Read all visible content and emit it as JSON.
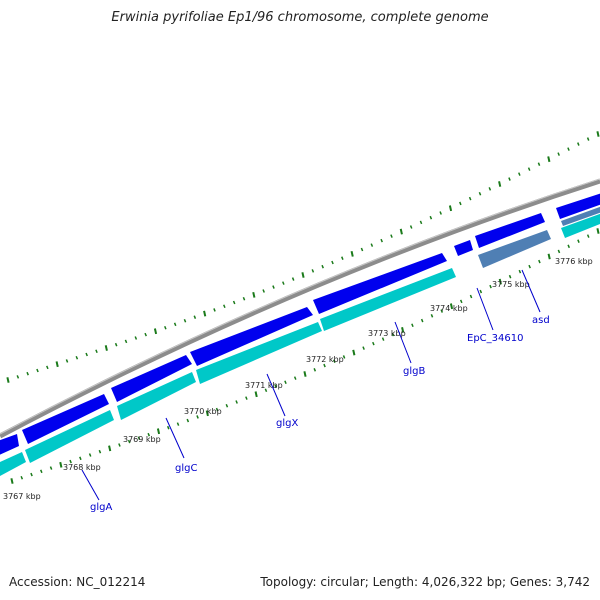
{
  "title": "Erwinia pyrifoliae Ep1/96 chromosome, complete genome",
  "footer": {
    "accession": "Accession: NC_012214",
    "summary": "Topology: circular; Length: 4,026,322 bp; Genes: 3,742"
  },
  "ticks": [
    "3767 kbp",
    "3768 kbp",
    "3769 kbp",
    "3770 kbp",
    "3771 kbp",
    "3772 kbp",
    "3773 kbp",
    "3774 kbp",
    "3775 kbp",
    "3776 kbp"
  ],
  "genes": [
    "glgA",
    "glgC",
    "glgX",
    "glgB",
    "EpC_34610",
    "asd"
  ],
  "colors": {
    "backbone": "#8c8c8c",
    "cds_forward": "#0000ee",
    "cds_reverse": "#00c8c8",
    "feature_gray": "#4f7fb4",
    "tick": "#1a7a1a",
    "gene_label": "#0000cc"
  }
}
